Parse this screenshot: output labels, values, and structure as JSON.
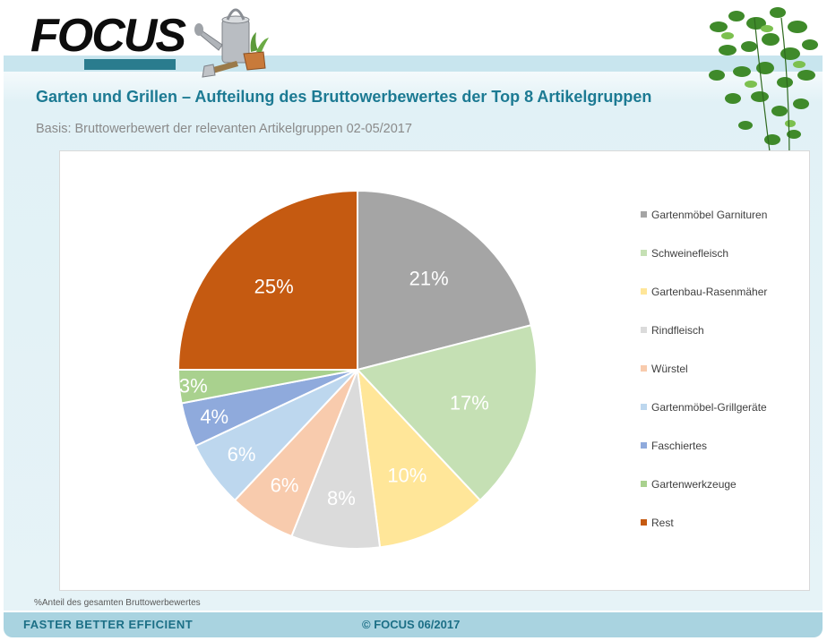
{
  "logo": {
    "text": "FOCUS"
  },
  "header": {
    "title": "Garten und Grillen – Aufteilung des Bruttowerbewertes der Top 8 Artikelgruppen",
    "subtitle": "Basis: Bruttowerbewert  der relevanten  Artikelgruppen 02-05/2017"
  },
  "chart_data": {
    "type": "pie",
    "title": "Garten und Grillen – Aufteilung des Bruttowerbewertes der Top 8 Artikelgruppen",
    "categories": [
      "Gartenmöbel Garnituren",
      "Schweinefleisch",
      "Gartenbau-Rasenmäher",
      "Rindfleisch",
      "Würstel",
      "Gartenmöbel-Grillgeräte",
      "Faschiertes",
      "Gartenwerkzeuge",
      "Rest"
    ],
    "values": [
      21,
      17,
      10,
      8,
      6,
      6,
      4,
      3,
      25
    ],
    "labels": [
      "21%",
      "17%",
      "10%",
      "8%",
      "6%",
      "6%",
      "4%",
      "3%",
      "25%"
    ],
    "colors": [
      "#a5a5a5",
      "#c5e0b4",
      "#ffe699",
      "#dbdbdb",
      "#f8cbad",
      "#bdd7ee",
      "#8faadc",
      "#a9d18e",
      "#c55a11"
    ],
    "start_angle_deg": 0,
    "direction": "clockwise",
    "legend_position": "right"
  },
  "footnote": "%Anteil des gesamten Bruttowerbewertes",
  "footer": {
    "left": "FASTER BETTER EFFICIENT",
    "center": "© FOCUS 06/2017"
  }
}
